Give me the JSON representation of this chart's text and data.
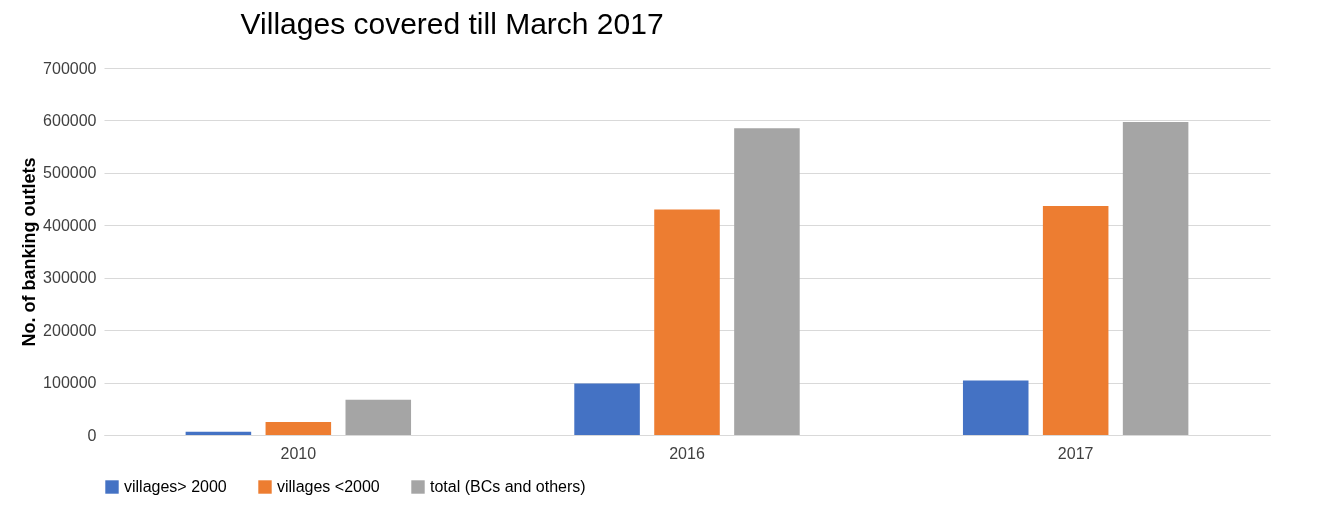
{
  "chart_data": {
    "type": "bar",
    "title": "Villages covered till March 2017",
    "ylabel": "No. of banking outlets",
    "categories": [
      "2010",
      "2016",
      "2017"
    ],
    "series": [
      {
        "name": "villages> 2000",
        "color": "#4472c4",
        "values": [
          6000,
          98000,
          104000
        ]
      },
      {
        "name": "villages <2000",
        "color": "#ed7d31",
        "values": [
          25000,
          430000,
          437000
        ]
      },
      {
        "name": "total (BCs and others)",
        "color": "#a5a5a5",
        "values": [
          67000,
          585000,
          597000
        ]
      }
    ],
    "ylim": [
      0,
      700000
    ],
    "yticks": [
      0,
      100000,
      200000,
      300000,
      400000,
      500000,
      600000,
      700000
    ],
    "grid": "y",
    "legend": "bottom"
  }
}
